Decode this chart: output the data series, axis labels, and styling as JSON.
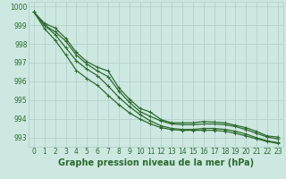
{
  "title": "Graphe pression niveau de la mer (hPa)",
  "x": [
    0,
    1,
    2,
    3,
    4,
    5,
    6,
    7,
    8,
    9,
    10,
    11,
    12,
    13,
    14,
    15,
    16,
    17,
    18,
    19,
    20,
    21,
    22,
    23
  ],
  "line1": [
    999.7,
    999.1,
    998.85,
    998.3,
    997.55,
    997.05,
    996.75,
    996.55,
    995.65,
    995.05,
    994.55,
    994.35,
    993.95,
    993.78,
    993.78,
    993.78,
    993.85,
    993.82,
    993.78,
    993.65,
    993.52,
    993.32,
    993.08,
    993.02
  ],
  "line2": [
    999.7,
    999.0,
    998.65,
    998.15,
    997.4,
    996.92,
    996.55,
    996.25,
    995.48,
    994.88,
    994.38,
    994.12,
    993.88,
    993.72,
    993.68,
    993.68,
    993.72,
    993.72,
    993.68,
    993.58,
    993.42,
    993.22,
    993.02,
    992.92
  ],
  "line3": [
    999.7,
    999.0,
    998.5,
    997.8,
    997.1,
    996.65,
    996.3,
    995.75,
    995.15,
    994.65,
    994.22,
    993.88,
    993.62,
    993.48,
    993.43,
    993.43,
    993.48,
    993.48,
    993.43,
    993.33,
    993.18,
    992.98,
    992.82,
    992.72
  ],
  "line4": [
    999.7,
    998.82,
    998.2,
    997.42,
    996.58,
    996.15,
    995.78,
    995.25,
    994.75,
    994.32,
    993.98,
    993.72,
    993.52,
    993.42,
    993.38,
    993.38,
    993.38,
    993.38,
    993.33,
    993.22,
    993.08,
    992.92,
    992.78,
    992.68
  ],
  "line_color": "#2d6a2d",
  "bg_color": "#cce8e0",
  "grid_color": "#b0ccc8",
  "ylim": [
    992.5,
    1000.25
  ],
  "yticks": [
    993,
    994,
    995,
    996,
    997,
    998,
    999,
    1000
  ],
  "xticks": [
    0,
    1,
    2,
    3,
    4,
    5,
    6,
    7,
    8,
    9,
    10,
    11,
    12,
    13,
    14,
    15,
    16,
    17,
    18,
    19,
    20,
    21,
    22,
    23
  ],
  "marker": "+",
  "markersize": 3.5,
  "linewidth": 0.9,
  "title_fontsize": 7.0,
  "tick_fontsize": 5.5,
  "xlim": [
    -0.5,
    23.5
  ]
}
